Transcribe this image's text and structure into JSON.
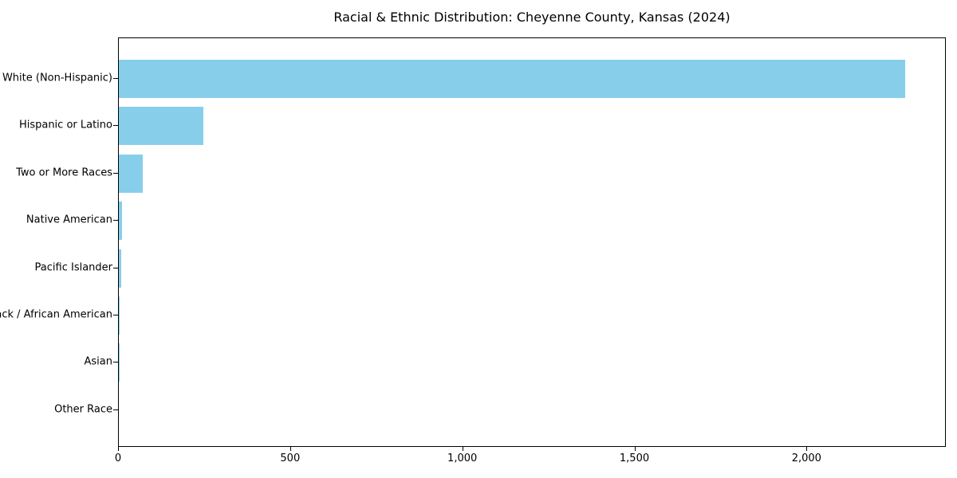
{
  "title": "Racial & Ethnic Distribution: Cheyenne County, Kansas (2024)",
  "chart_data": {
    "type": "bar",
    "orientation": "horizontal",
    "title": "Racial & Ethnic Distribution: Cheyenne County, Kansas (2024)",
    "xlabel": "",
    "ylabel": "",
    "categories": [
      "White (Non-Hispanic)",
      "Hispanic or Latino",
      "Two or More Races",
      "Native American",
      "Pacific Islander",
      "Black / African American",
      "Asian",
      "Other Race"
    ],
    "values": [
      2285,
      245,
      70,
      10,
      6,
      2,
      1,
      0
    ],
    "xlim": [
      0,
      2400
    ],
    "x_ticks": [
      0,
      500,
      1000,
      1500,
      2000
    ],
    "x_tick_labels": [
      "0",
      "500",
      "1,000",
      "1,500",
      "2,000"
    ],
    "bar_color": "#87CEEB",
    "frame_color": "#000000",
    "grid": false,
    "legend": null
  }
}
